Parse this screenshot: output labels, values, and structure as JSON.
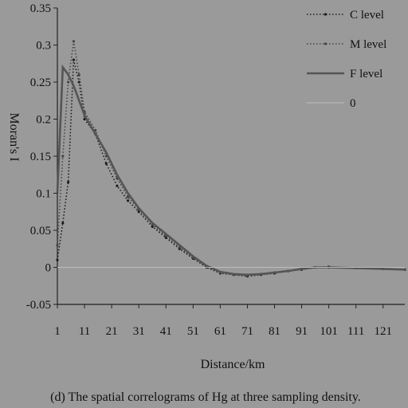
{
  "chart_data": {
    "type": "line",
    "title": "",
    "caption": "(d) The spatial correlograms of Hg at three sampling density.",
    "xlabel": "Distance/km",
    "ylabel": "Moran's I",
    "xlim": [
      1,
      129
    ],
    "ylim": [
      -0.05,
      0.35
    ],
    "x_ticks": [
      1,
      11,
      21,
      31,
      41,
      51,
      61,
      71,
      81,
      91,
      101,
      111,
      121
    ],
    "x_tick_labels": [
      "1",
      "11",
      "21",
      "31",
      "41",
      "51",
      "61",
      "71",
      "81",
      "91",
      "101",
      "111",
      "121"
    ],
    "y_ticks": [
      -0.05,
      0,
      0.05,
      0.1,
      0.15,
      0.2,
      0.25,
      0.3,
      0.35
    ],
    "y_tick_labels": [
      "-0.05",
      "0",
      "0.05",
      "0.1",
      "0.15",
      "0.2",
      "0.25",
      "0.3",
      "0.35"
    ],
    "grid": false,
    "legend_position": "top-right",
    "series": [
      {
        "name": "C level",
        "style": "dotted",
        "color": "#1a1a1a",
        "x": [
          1,
          3,
          5,
          7,
          9,
          11,
          15,
          19,
          23,
          27,
          31,
          36,
          41,
          46,
          51,
          56,
          61,
          66,
          71,
          76,
          81,
          86,
          91,
          96,
          101,
          111,
          121,
          129
        ],
        "values": [
          0.01,
          0.06,
          0.115,
          0.28,
          0.25,
          0.2,
          0.18,
          0.14,
          0.11,
          0.09,
          0.075,
          0.055,
          0.04,
          0.025,
          0.012,
          0.0,
          -0.008,
          -0.01,
          -0.012,
          -0.01,
          -0.008,
          -0.005,
          -0.003,
          0.0,
          0.0,
          -0.001,
          -0.002,
          -0.003
        ]
      },
      {
        "name": "M level",
        "style": "dotted",
        "color": "#444444",
        "x": [
          1,
          3,
          5,
          7,
          9,
          11,
          15,
          19,
          23,
          27,
          31,
          36,
          41,
          46,
          51,
          56,
          61,
          66,
          71,
          76,
          81,
          86,
          91,
          96,
          101,
          111,
          121,
          129
        ],
        "values": [
          0.03,
          0.15,
          0.25,
          0.305,
          0.26,
          0.21,
          0.185,
          0.15,
          0.12,
          0.095,
          0.078,
          0.058,
          0.042,
          0.027,
          0.013,
          0.001,
          -0.007,
          -0.01,
          -0.011,
          -0.009,
          -0.007,
          -0.005,
          -0.002,
          0.0,
          0.001,
          -0.001,
          -0.002,
          -0.003
        ]
      },
      {
        "name": "F level",
        "style": "solid",
        "color": "#555555",
        "x": [
          1,
          3,
          5,
          7,
          9,
          11,
          15,
          19,
          23,
          27,
          31,
          36,
          41,
          46,
          51,
          56,
          61,
          66,
          71,
          76,
          81,
          86,
          91,
          96,
          101,
          111,
          121,
          129
        ],
        "values": [
          0.1,
          0.27,
          0.26,
          0.245,
          0.225,
          0.205,
          0.18,
          0.155,
          0.125,
          0.1,
          0.08,
          0.06,
          0.045,
          0.03,
          0.015,
          0.002,
          -0.006,
          -0.009,
          -0.01,
          -0.009,
          -0.007,
          -0.005,
          -0.002,
          0.0,
          0.0,
          -0.001,
          -0.002,
          -0.003
        ]
      },
      {
        "name": "0",
        "style": "solid-thin",
        "color": "#bdbdbd",
        "x": [
          1,
          129
        ],
        "values": [
          0,
          0
        ]
      }
    ]
  }
}
